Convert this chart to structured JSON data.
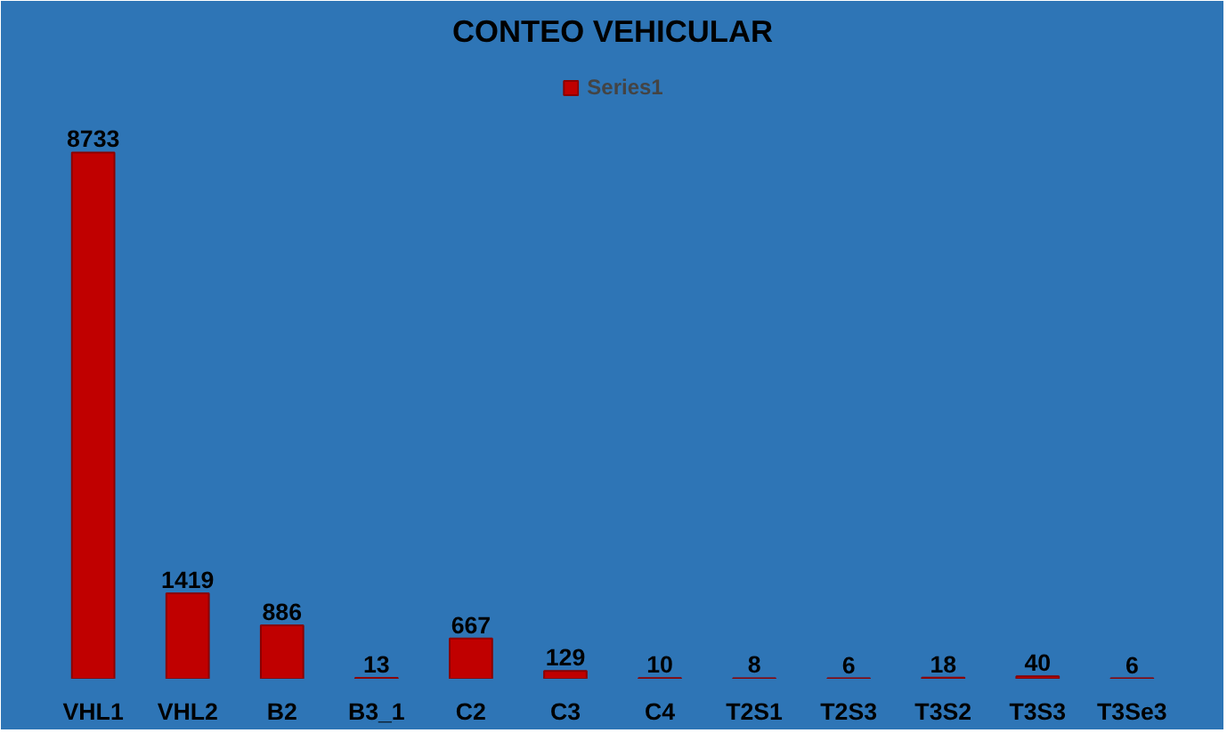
{
  "chart_data": {
    "type": "bar",
    "title": "CONTEO VEHICULAR",
    "categories": [
      "VHL1",
      "VHL2",
      "B2",
      "B3_1",
      "C2",
      "C3",
      "C4",
      "T2S1",
      "T2S3",
      "T3S2",
      "T3S3",
      "T3Se3"
    ],
    "series": [
      {
        "name": "Series1",
        "color": "#c00000",
        "values": [
          8733,
          1419,
          886,
          13,
          667,
          129,
          10,
          8,
          6,
          18,
          40,
          6
        ]
      }
    ],
    "data_labels": true,
    "legend": "top",
    "grid": false
  }
}
